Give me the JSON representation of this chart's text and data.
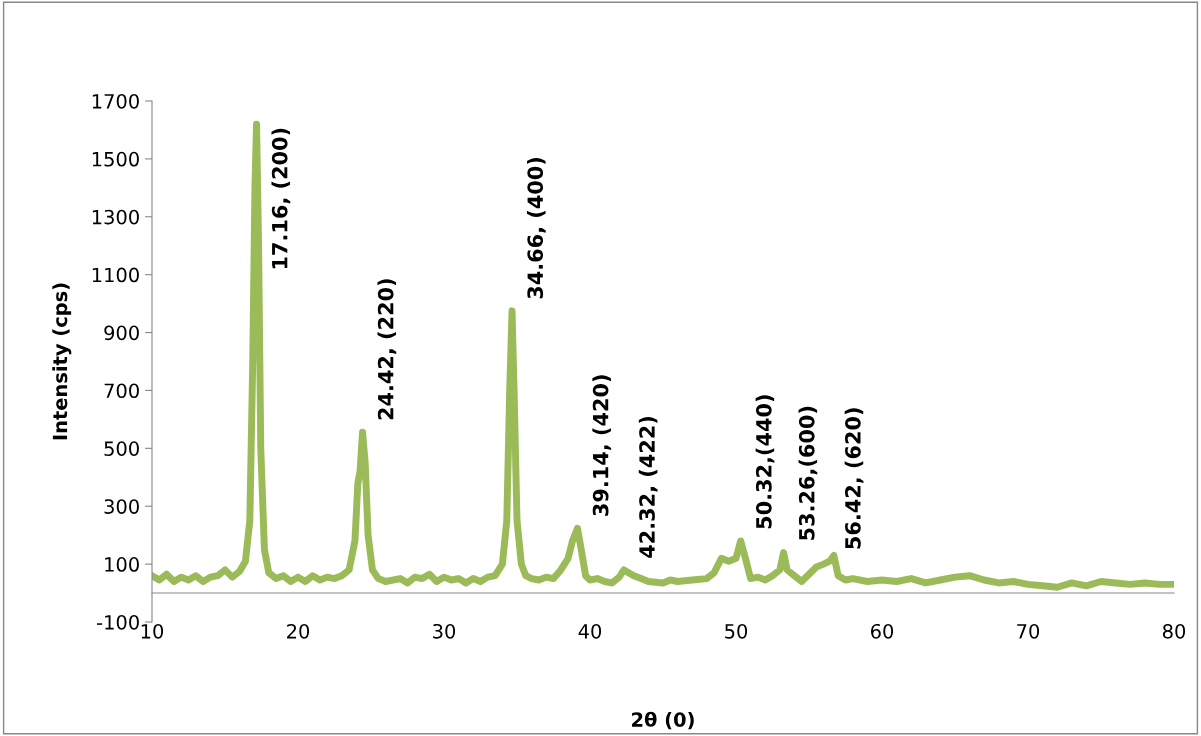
{
  "chart_data": {
    "type": "line",
    "xlabel": "2θ (0)",
    "ylabel": "Intensity (cps)",
    "x": [
      10,
      10.5,
      11,
      11.5,
      12,
      12.5,
      13,
      13.5,
      14,
      14.5,
      15,
      15.5,
      16,
      16.4,
      16.7,
      16.9,
      17.05,
      17.16,
      17.3,
      17.45,
      17.7,
      18,
      18.5,
      19,
      19.5,
      20,
      20.5,
      21,
      21.5,
      22,
      22.5,
      23,
      23.5,
      23.9,
      24.1,
      24.25,
      24.42,
      24.6,
      24.8,
      25.1,
      25.5,
      26,
      27,
      27.5,
      28,
      28.5,
      29,
      29.5,
      30,
      30.5,
      31,
      31.5,
      32,
      32.5,
      33,
      33.5,
      34,
      34.3,
      34.5,
      34.66,
      34.8,
      35,
      35.3,
      35.6,
      36,
      36.5,
      37,
      37.5,
      38,
      38.5,
      38.8,
      39.14,
      39.4,
      39.7,
      40,
      40.5,
      41,
      41.5,
      42,
      42.32,
      43,
      43.5,
      44,
      45,
      45.5,
      46,
      47,
      48,
      48.5,
      49,
      49.5,
      50,
      50.32,
      50.7,
      51,
      51.5,
      52,
      52.5,
      53,
      53.26,
      53.5,
      54,
      54.5,
      55,
      55.5,
      56,
      56.42,
      56.7,
      57,
      57.5,
      58,
      59,
      60,
      61,
      62,
      63,
      64,
      65,
      66,
      67,
      68,
      69,
      70,
      71,
      72,
      73,
      74,
      75,
      76,
      77,
      78,
      79,
      80
    ],
    "series": [
      {
        "color": "#9bbb59",
        "values": [
          60,
          45,
          65,
          40,
          55,
          45,
          60,
          40,
          55,
          60,
          80,
          55,
          75,
          110,
          250,
          800,
          1400,
          1620,
          1200,
          500,
          150,
          70,
          50,
          60,
          40,
          55,
          40,
          60,
          45,
          55,
          50,
          60,
          80,
          180,
          380,
          420,
          556,
          450,
          200,
          80,
          50,
          40,
          50,
          35,
          55,
          50,
          65,
          40,
          55,
          45,
          50,
          35,
          50,
          40,
          55,
          60,
          100,
          250,
          700,
          975,
          700,
          250,
          100,
          60,
          50,
          45,
          55,
          50,
          80,
          120,
          180,
          224,
          150,
          60,
          45,
          50,
          40,
          35,
          55,
          80,
          60,
          50,
          40,
          35,
          45,
          40,
          45,
          50,
          70,
          120,
          110,
          120,
          180,
          110,
          50,
          55,
          45,
          60,
          80,
          140,
          80,
          60,
          40,
          65,
          90,
          100,
          110,
          130,
          60,
          45,
          50,
          40,
          45,
          40,
          50,
          35,
          45,
          55,
          60,
          45,
          35,
          40,
          30,
          25,
          20,
          35,
          25,
          40,
          35,
          30,
          35,
          30,
          30
        ]
      }
    ],
    "xlim": [
      10,
      80
    ],
    "xticks": [
      10,
      20,
      30,
      40,
      50,
      60,
      70,
      80
    ],
    "ylim": [
      -100,
      1700
    ],
    "yticks": [
      -100,
      100,
      300,
      500,
      700,
      900,
      1100,
      1300,
      1500,
      1700
    ],
    "grid": false,
    "legend": false,
    "marker": "none",
    "line_style": "solid",
    "annotations": [
      {
        "text": "17.16, (200)",
        "x": 17.16,
        "y": 1620
      },
      {
        "text": "24.42, (220)",
        "x": 24.42,
        "y": 556
      },
      {
        "text": "34.66, (400)",
        "x": 34.66,
        "y": 975
      },
      {
        "text": "39.14, (420)",
        "x": 39.14,
        "y": 224
      },
      {
        "text": "42.32, (422)",
        "x": 42.32,
        "y": 80
      },
      {
        "text": "50.32,(440)",
        "x": 50.32,
        "y": 180
      },
      {
        "text": "53.26,(600)",
        "x": 53.26,
        "y": 140
      },
      {
        "text": "56.42, (620)",
        "x": 56.42,
        "y": 110
      }
    ]
  }
}
